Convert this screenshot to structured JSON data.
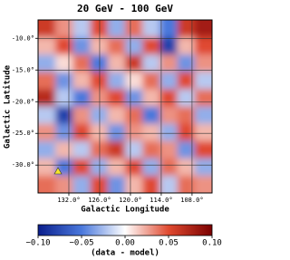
{
  "chart_data": {
    "type": "heatmap",
    "title": "20 GeV - 100 GeV",
    "x_label": "Galactic Longitude",
    "y_label": "Galactic Latitude",
    "xlim": [
      138.0,
      104.1
    ],
    "ylim": [
      -34.4,
      -7.1
    ],
    "xticks": [
      {
        "value": 132,
        "label": "132.0°"
      },
      {
        "value": 126,
        "label": "126.0°"
      },
      {
        "value": 120,
        "label": "120.0°"
      },
      {
        "value": 114,
        "label": "114.0°"
      },
      {
        "value": 108,
        "label": "108.0°"
      }
    ],
    "yticks": [
      {
        "value": -10,
        "label": "-10.0°"
      },
      {
        "value": -15,
        "label": "-15.0°"
      },
      {
        "value": -20,
        "label": "-20.0°"
      },
      {
        "value": -25,
        "label": "-25.0°"
      },
      {
        "value": -30,
        "label": "-30.0°"
      }
    ],
    "grid": true,
    "z": [
      [
        0.06,
        0.03,
        -0.02,
        0.05,
        -0.03,
        0.04,
        -0.02,
        -0.05,
        0.06,
        0.08
      ],
      [
        0.02,
        0.05,
        -0.04,
        0.02,
        0.04,
        -0.03,
        0.05,
        -0.08,
        0.02,
        0.05
      ],
      [
        -0.03,
        0.01,
        0.04,
        -0.05,
        0.02,
        0.06,
        -0.02,
        0.03,
        -0.04,
        0.03
      ],
      [
        0.04,
        -0.04,
        0.02,
        0.05,
        -0.03,
        0.01,
        0.04,
        -0.03,
        0.05,
        -0.02
      ],
      [
        0.07,
        -0.02,
        -0.05,
        0.03,
        0.05,
        -0.04,
        0.02,
        0.05,
        -0.02,
        0.04
      ],
      [
        -0.02,
        -0.08,
        0.03,
        -0.03,
        0.02,
        0.04,
        -0.05,
        0.03,
        0.04,
        -0.03
      ],
      [
        0.03,
        -0.04,
        0.05,
        0.02,
        -0.04,
        0.03,
        0.02,
        -0.03,
        0.05,
        0.02
      ],
      [
        -0.03,
        0.02,
        -0.02,
        0.04,
        0.06,
        -0.02,
        0.04,
        0.03,
        -0.04,
        0.05
      ],
      [
        0.02,
        -0.05,
        0.05,
        -0.03,
        0.02,
        0.05,
        -0.03,
        0.04,
        0.02,
        -0.03
      ],
      [
        0.04,
        0.03,
        -0.03,
        0.05,
        -0.04,
        0.02,
        0.05,
        -0.02,
        0.04,
        0.03
      ]
    ],
    "colormap": [
      "#0a1e8c",
      "#4a78dc",
      "#ffffff",
      "#e04a30",
      "#7a0000"
    ],
    "zlim": [
      -0.1,
      0.1
    ],
    "colorbar_label": "(data - model)",
    "colorbar_ticks": [
      {
        "value": -0.1,
        "label": "−0.10"
      },
      {
        "value": -0.05,
        "label": "−0.05"
      },
      {
        "value": 0,
        "label": "0.00"
      },
      {
        "value": 0.05,
        "label": "0.05"
      },
      {
        "value": 0.1,
        "label": "0.10"
      }
    ]
  }
}
